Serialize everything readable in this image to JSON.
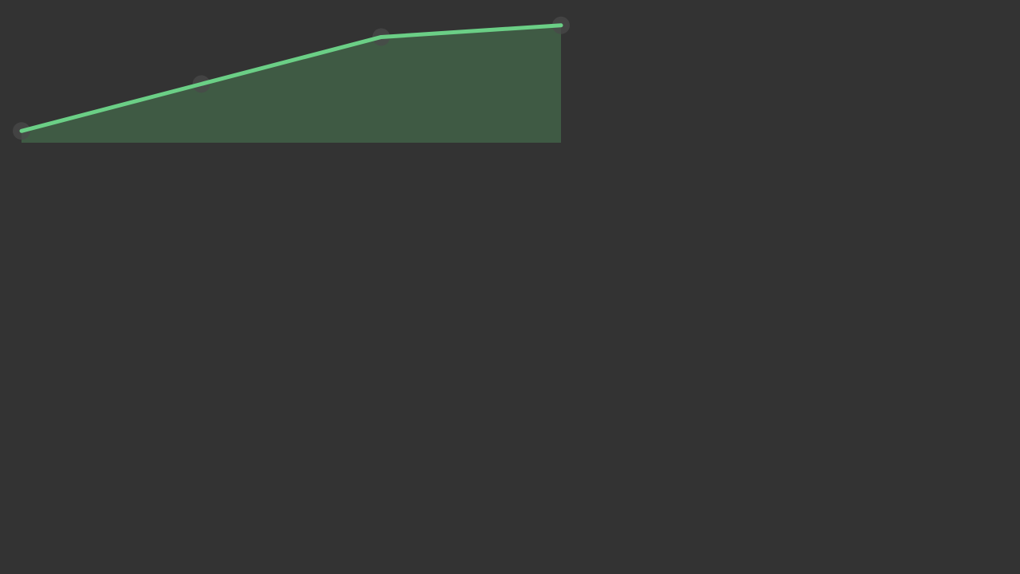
{
  "chart_data": {
    "type": "area",
    "title": "",
    "xlabel": "",
    "ylabel": "",
    "x": [
      0,
      1,
      2,
      3
    ],
    "series": [
      {
        "values": [
          10,
          50,
          90,
          100
        ]
      }
    ],
    "ylim": [
      0,
      110
    ],
    "grid": false,
    "legend": "none",
    "axes_visible": false
  },
  "colors": {
    "background": "#333333",
    "line": "#6bcf86",
    "area_fill": "#3f5a44",
    "point_halo": "#4a4a4a"
  }
}
